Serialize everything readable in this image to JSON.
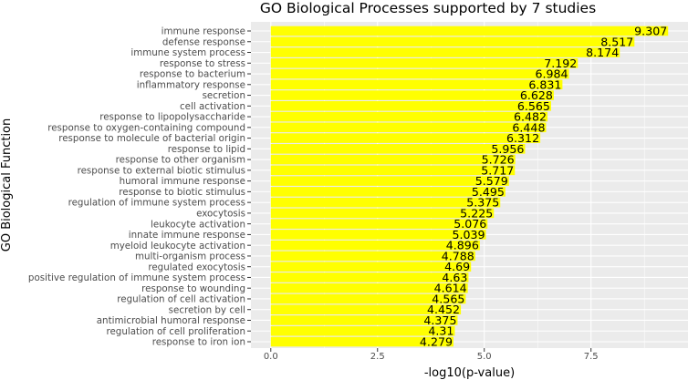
{
  "chart_data": {
    "type": "bar",
    "orientation": "horizontal",
    "title": "GO Biological Processes supported by 7 studies",
    "xlabel": "-log10(p-value)",
    "ylabel": "GO Biological Function",
    "xlim": [
      -0.4654,
      9.772
    ],
    "xticks": [
      "0.0",
      "2.5",
      "5.0",
      "7.5"
    ],
    "grid": true,
    "legend": "none",
    "bar_color": "#ffff00",
    "panel_color": "#ebebeb",
    "categories": [
      "immune response",
      "defense response",
      "immune system process",
      "response to stress",
      "response to bacterium",
      "inflammatory response",
      "secretion",
      "cell activation",
      "response to lipopolysaccharide",
      "response to oxygen-containing compound",
      "response to molecule of bacterial origin",
      "response to lipid",
      "response to other organism",
      "response to external biotic stimulus",
      "humoral immune response",
      "response to biotic stimulus",
      "regulation of immune system process",
      "exocytosis",
      "leukocyte activation",
      "innate immune response",
      "myeloid leukocyte activation",
      "multi-organism process",
      "regulated exocytosis",
      "positive regulation of immune system process",
      "response to wounding",
      "regulation of cell activation",
      "secretion by cell",
      "antimicrobial humoral response",
      "regulation of cell proliferation",
      "response to iron ion"
    ],
    "values": [
      9.307,
      8.517,
      8.174,
      7.192,
      6.984,
      6.831,
      6.628,
      6.565,
      6.482,
      6.448,
      6.312,
      5.956,
      5.726,
      5.717,
      5.579,
      5.495,
      5.375,
      5.225,
      5.076,
      5.039,
      4.896,
      4.788,
      4.69,
      4.63,
      4.614,
      4.565,
      4.452,
      4.375,
      4.31,
      4.279
    ],
    "value_labels": [
      "9.307",
      "8.517",
      "8.174",
      "7.192",
      "6.984",
      "6.831",
      "6.628",
      "6.565",
      "6.482",
      "6.448",
      "6.312",
      "5.956",
      "5.726",
      "5.717",
      "5.579",
      "5.495",
      "5.375",
      "5.225",
      "5.076",
      "5.039",
      "4.896",
      "4.788",
      "4.69",
      "4.63",
      "4.614",
      "4.565",
      "4.452",
      "4.375",
      "4.31",
      "4.279"
    ]
  }
}
